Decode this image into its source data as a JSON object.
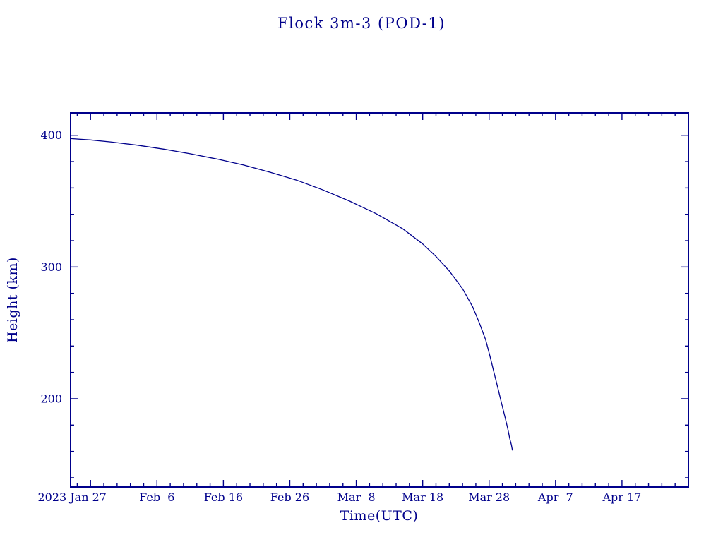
{
  "chart_data": {
    "type": "line",
    "title": "Flock 3m-3 (POD-1)",
    "xlabel": "Time(UTC)",
    "ylabel": "Height (km)",
    "ink_color": "#00008B",
    "line_color": "#00008B",
    "grid": false,
    "legend": "none",
    "xlim": [
      0,
      93
    ],
    "ylim": [
      133,
      417
    ],
    "x_axis_note": "x in days from axis origin (2023 Jan 24); labeled major ticks every 10 days, minor ticks every 2 days",
    "x_ticks": [
      {
        "day": 3,
        "label": "2023 Jan 27",
        "dx": -26
      },
      {
        "day": 13,
        "label": "Feb  6"
      },
      {
        "day": 23,
        "label": "Feb 16"
      },
      {
        "day": 33,
        "label": "Feb 26"
      },
      {
        "day": 43,
        "label": "Mar  8"
      },
      {
        "day": 53,
        "label": "Mar 18"
      },
      {
        "day": 63,
        "label": "Mar 28"
      },
      {
        "day": 73,
        "label": "Apr  7"
      },
      {
        "day": 83,
        "label": "Apr 17"
      }
    ],
    "x_minor_step_days": 2,
    "y_ticks": [
      200,
      300,
      400
    ],
    "y_minor_step": 20,
    "series": [
      {
        "name": "Flock 3m-3 (POD-1) orbital height",
        "x_days": [
          0,
          3,
          6,
          10,
          14,
          18,
          22,
          26,
          30,
          34,
          38,
          42,
          46,
          50,
          53,
          55,
          57,
          59,
          60.5,
          61.5,
          62.5,
          63.2,
          63.8,
          64.4,
          64.9,
          65.4,
          65.8,
          66.1,
          66.35,
          66.5
        ],
        "height_km": [
          397.5,
          396.5,
          395,
          392.5,
          389.5,
          386,
          382,
          377.5,
          372,
          366,
          358.5,
          350,
          340.5,
          329,
          317.5,
          308,
          297,
          283.5,
          270,
          258,
          244.5,
          231,
          218.5,
          206.5,
          196,
          186,
          177.5,
          170,
          165,
          161
        ]
      }
    ]
  }
}
